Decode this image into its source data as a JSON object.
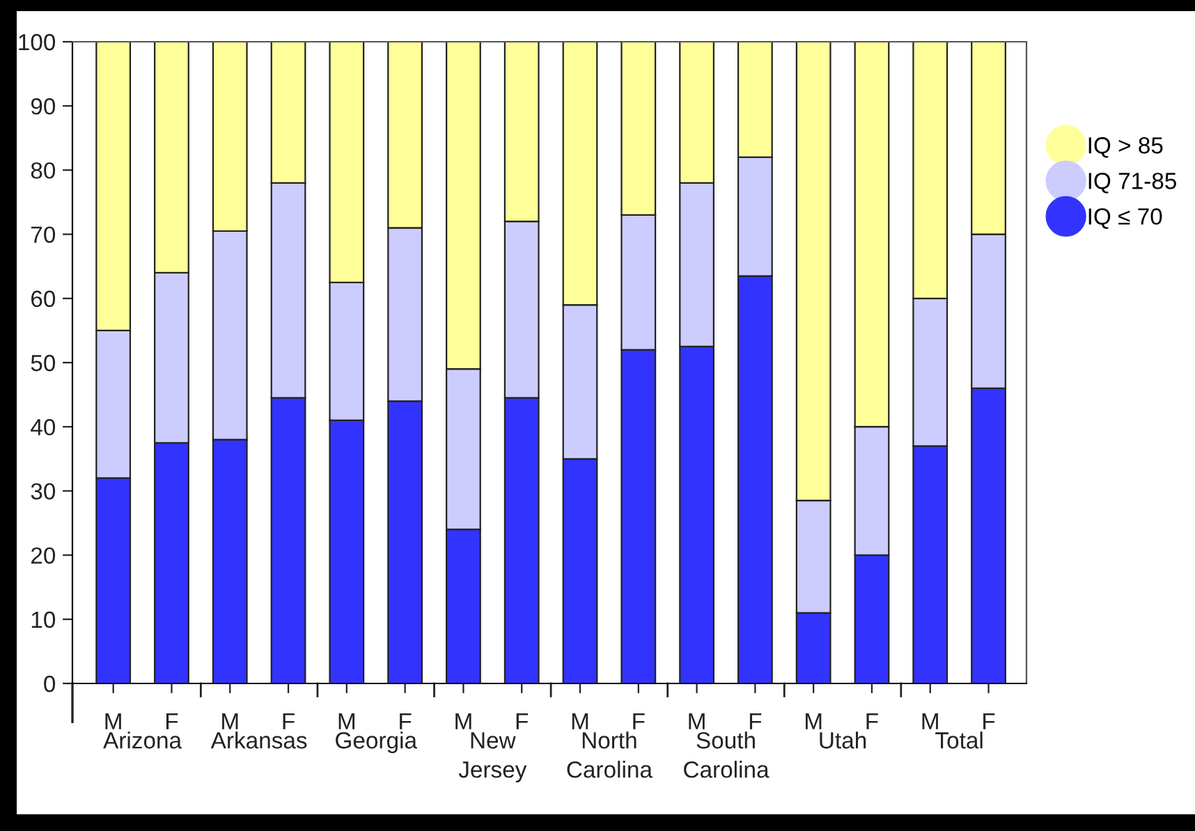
{
  "chart_data": {
    "type": "bar",
    "stacked": true,
    "categories": [
      "M",
      "F",
      "M",
      "F",
      "M",
      "F",
      "M",
      "F",
      "M",
      "F",
      "M",
      "F",
      "M",
      "F",
      "M",
      "F"
    ],
    "annotations": [
      "Arizona",
      "Arkansas",
      "Georgia",
      "New Jersey",
      "North Carolina",
      "South Carolina",
      "Utah",
      "Total"
    ],
    "series": [
      {
        "name": "IQ ≤ 70",
        "color": "#3333ff",
        "values": [
          32,
          37.5,
          38,
          44.5,
          41,
          44,
          24,
          44.5,
          35,
          52,
          52.5,
          63.5,
          11,
          20,
          37,
          46
        ]
      },
      {
        "name": "IQ 71-85",
        "color": "#ccccff",
        "values": [
          23,
          26.5,
          32.5,
          33.5,
          21.5,
          27,
          25,
          27.5,
          24,
          21,
          25.5,
          18.5,
          17.5,
          20,
          23,
          24
        ]
      },
      {
        "name": "IQ > 85",
        "color": "#ffff99",
        "values": [
          45,
          36,
          29.5,
          22,
          37.5,
          29,
          51,
          28,
          41,
          27,
          22,
          18,
          71.5,
          60,
          40,
          30
        ]
      }
    ],
    "ylim": [
      0,
      100
    ],
    "yticks": [
      0,
      10,
      20,
      30,
      40,
      50,
      60,
      70,
      80,
      90,
      100
    ],
    "grid": false,
    "legend": "right",
    "marker": "circle"
  }
}
